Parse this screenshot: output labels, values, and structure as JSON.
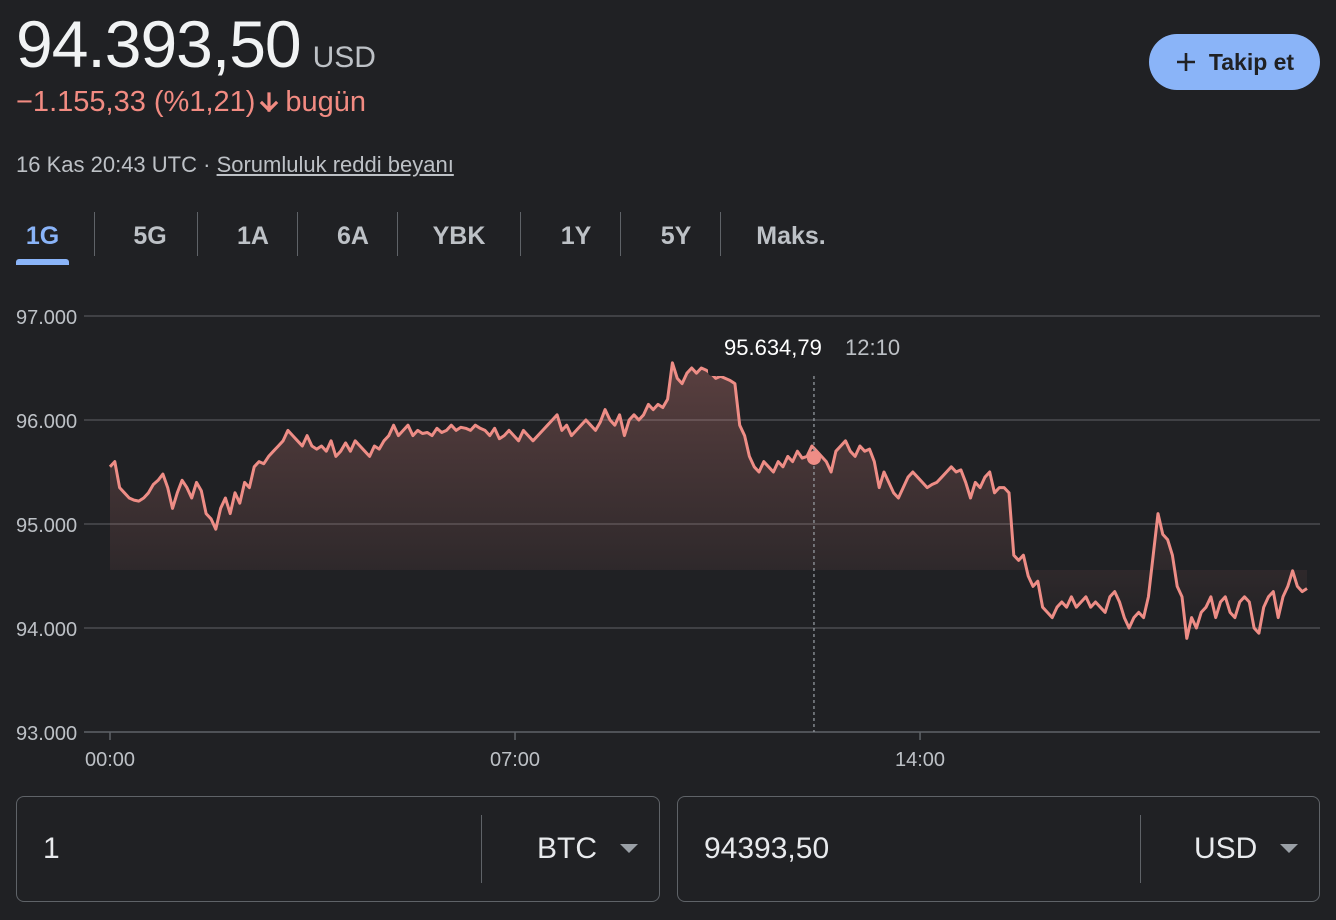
{
  "header": {
    "price": "94.393,50",
    "currency": "USD",
    "change": "−1.155,33 (%1,21)",
    "change_suffix": "bugün",
    "timestamp": "16 Kas 20:43 UTC",
    "separator": "·",
    "disclaimer": "Sorumluluk reddi beyanı",
    "follow_label": "Takip et"
  },
  "tabs": [
    {
      "label": "1G",
      "active": true
    },
    {
      "label": "5G",
      "active": false
    },
    {
      "label": "1A",
      "active": false
    },
    {
      "label": "6A",
      "active": false
    },
    {
      "label": "YBK",
      "active": false
    },
    {
      "label": "1Y",
      "active": false
    },
    {
      "label": "5Y",
      "active": false
    },
    {
      "label": "Maks.",
      "active": false
    }
  ],
  "colors": {
    "line": "#ee8d86",
    "accent": "#8ab4f8",
    "negative": "#f28b82"
  },
  "chart_data": {
    "type": "line",
    "y_ticks": [
      "97.000",
      "96.000",
      "95.000",
      "94.000",
      "93.000"
    ],
    "x_ticks": [
      "00:00",
      "07:00",
      "14:00"
    ],
    "x_tick_hours": [
      0,
      7,
      14
    ],
    "ylim": [
      93000,
      97000
    ],
    "xlim_hours": [
      0,
      24
    ],
    "tooltip": {
      "value": "95.634,79",
      "time": "12:10",
      "hour": 12.1667
    },
    "series": [
      {
        "values": [
          95550,
          95600,
          95350,
          95300,
          95250,
          95230,
          95220,
          95250,
          95300,
          95380,
          95420,
          95480,
          95350,
          95150,
          95300,
          95420,
          95350,
          95250,
          95400,
          95320,
          95100,
          95050,
          94950,
          95150,
          95250,
          95100,
          95300,
          95200,
          95400,
          95350,
          95550,
          95600,
          95580,
          95650,
          95700,
          95750,
          95800,
          95900,
          95850,
          95800,
          95750,
          95850,
          95750,
          95720,
          95750,
          95700,
          95800,
          95650,
          95700,
          95780,
          95700,
          95800,
          95750,
          95700,
          95650,
          95750,
          95720,
          95800,
          95850,
          95950,
          95850,
          95900,
          95950,
          95850,
          95900,
          95870,
          95880,
          95850,
          95920,
          95880,
          95900,
          95950,
          95900,
          95930,
          95920,
          95900,
          95950,
          95920,
          95900,
          95850,
          95920,
          95820,
          95850,
          95900,
          95850,
          95800,
          95900,
          95850,
          95800,
          95850,
          95900,
          95950,
          96000,
          96050,
          95900,
          95950,
          95850,
          95900,
          95950,
          96000,
          95950,
          95900,
          95980,
          96100,
          96000,
          95950,
          96050,
          95850,
          96000,
          96050,
          96000,
          96050,
          96150,
          96100,
          96150,
          96120,
          96200,
          96550,
          96400,
          96350,
          96450,
          96500,
          96450,
          96500,
          96480,
          96450,
          96400,
          96420,
          96400,
          96380,
          96350,
          95950,
          95850,
          95650,
          95550,
          95500,
          95600,
          95550,
          95500,
          95600,
          95550,
          95650,
          95600,
          95700,
          95634,
          95650,
          95750,
          95700,
          95650,
          95600,
          95500,
          95700,
          95750,
          95800,
          95700,
          95650,
          95750,
          95700,
          95720,
          95600,
          95350,
          95500,
          95400,
          95300,
          95250,
          95350,
          95450,
          95500,
          95450,
          95400,
          95350,
          95380,
          95400,
          95450,
          95500,
          95550,
          95500,
          95520,
          95400,
          95250,
          95400,
          95350,
          95450,
          95500,
          95300,
          95350,
          95350,
          95300,
          94700,
          94650,
          94700,
          94500,
          94400,
          94450,
          94200,
          94150,
          94100,
          94200,
          94250,
          94200,
          94300,
          94200,
          94250,
          94300,
          94200,
          94250,
          94200,
          94150,
          94300,
          94350,
          94250,
          94100,
          94000,
          94100,
          94150,
          94100,
          94300,
          94700,
          95100,
          94900,
          94850,
          94700,
          94400,
          94300,
          93900,
          94100,
          94000,
          94150,
          94200,
          94300,
          94100,
          94250,
          94300,
          94150,
          94100,
          94250,
          94300,
          94250,
          94000,
          93950,
          94200,
          94300,
          94350,
          94100,
          94300,
          94400,
          94550,
          94400,
          94350,
          94380
        ]
      }
    ]
  },
  "converter": {
    "from_value": "1",
    "from_unit": "BTC",
    "to_value": "94393,50",
    "to_unit": "USD"
  }
}
